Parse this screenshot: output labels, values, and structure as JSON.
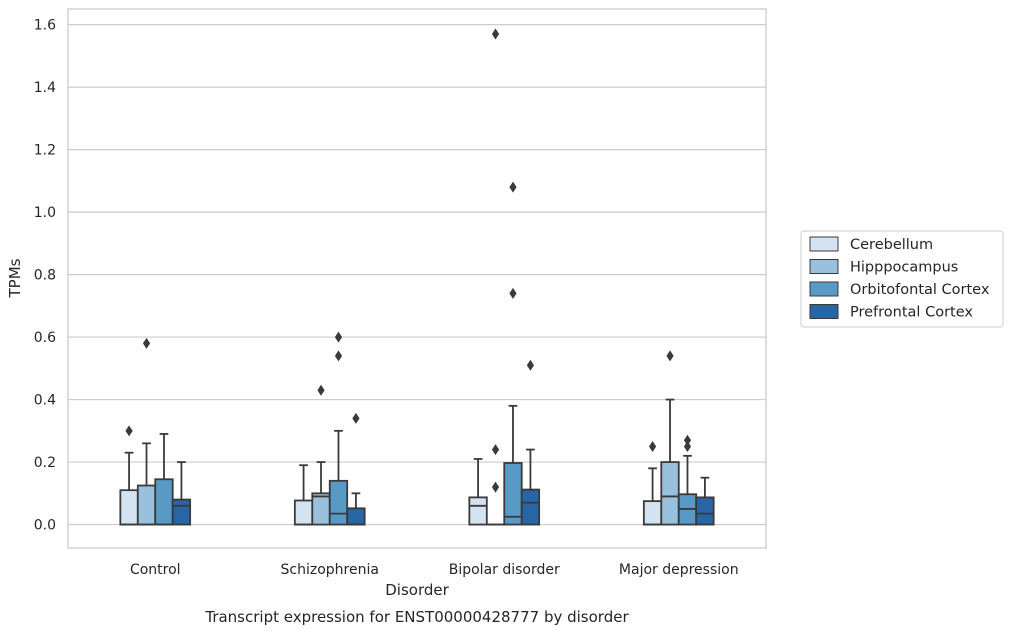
{
  "chart_data": {
    "type": "box",
    "xlabel": "Disorder",
    "ylabel": "TPMs",
    "caption": "Transcript expression for ENST00000428777 by disorder",
    "ylim": [
      -0.075,
      1.65
    ],
    "yticks": [
      0.0,
      0.2,
      0.4,
      0.6,
      0.8,
      1.0,
      1.2,
      1.4,
      1.6
    ],
    "ytick_labels": [
      "0.0",
      "0.2",
      "0.4",
      "0.6",
      "0.8",
      "1.0",
      "1.2",
      "1.4",
      "1.6"
    ],
    "grid": "horizontal",
    "legend_position": "right",
    "categories": [
      "Control",
      "Schizophrenia",
      "Bipolar disorder",
      "Major depression"
    ],
    "series": [
      {
        "name": "Cerebellum",
        "color": "#d4e3f1",
        "boxes": [
          {
            "min": 0.0,
            "q1": 0.0,
            "median": 0.0,
            "q3": 0.11,
            "max": 0.23,
            "outliers": [
              0.3
            ]
          },
          {
            "min": 0.0,
            "q1": 0.0,
            "median": 0.0,
            "q3": 0.077,
            "max": 0.19,
            "outliers": []
          },
          {
            "min": 0.0,
            "q1": 0.0,
            "median": 0.06,
            "q3": 0.087,
            "max": 0.21,
            "outliers": []
          },
          {
            "min": 0.0,
            "q1": 0.0,
            "median": 0.0,
            "q3": 0.075,
            "max": 0.18,
            "outliers": [
              0.25
            ]
          }
        ]
      },
      {
        "name": "Hipppocampus",
        "color": "#99c1dd",
        "boxes": [
          {
            "min": 0.0,
            "q1": 0.0,
            "median": 0.0,
            "q3": 0.125,
            "max": 0.26,
            "outliers": [
              0.58
            ]
          },
          {
            "min": 0.0,
            "q1": 0.0,
            "median": 0.09,
            "q3": 0.1,
            "max": 0.2,
            "outliers": [
              0.43
            ]
          },
          {
            "min": 0.0,
            "q1": 0.0,
            "median": 0.0,
            "q3": 0.0,
            "max": 0.0,
            "outliers": [
              0.12,
              0.24,
              1.57
            ]
          },
          {
            "min": 0.0,
            "q1": 0.0,
            "median": 0.09,
            "q3": 0.2,
            "max": 0.4,
            "outliers": [
              0.54
            ]
          }
        ]
      },
      {
        "name": "Orbitofontal Cortex",
        "color": "#5899c6",
        "boxes": [
          {
            "min": 0.0,
            "q1": 0.0,
            "median": 0.0,
            "q3": 0.145,
            "max": 0.29,
            "outliers": []
          },
          {
            "min": 0.0,
            "q1": 0.0,
            "median": 0.035,
            "q3": 0.14,
            "max": 0.3,
            "outliers": [
              0.54,
              0.6
            ]
          },
          {
            "min": 0.0,
            "q1": 0.0,
            "median": 0.025,
            "q3": 0.197,
            "max": 0.38,
            "outliers": [
              0.74,
              1.08
            ]
          },
          {
            "min": 0.0,
            "q1": 0.0,
            "median": 0.05,
            "q3": 0.097,
            "max": 0.22,
            "outliers": [
              0.25,
              0.27
            ]
          }
        ]
      },
      {
        "name": "Prefrontal Cortex",
        "color": "#2765a4",
        "boxes": [
          {
            "min": 0.0,
            "q1": 0.0,
            "median": 0.06,
            "q3": 0.08,
            "max": 0.2,
            "outliers": []
          },
          {
            "min": 0.0,
            "q1": 0.0,
            "median": 0.0,
            "q3": 0.052,
            "max": 0.1,
            "outliers": [
              0.34
            ]
          },
          {
            "min": 0.0,
            "q1": 0.0,
            "median": 0.07,
            "q3": 0.112,
            "max": 0.24,
            "outliers": [
              0.51
            ]
          },
          {
            "min": 0.0,
            "q1": 0.0,
            "median": 0.035,
            "q3": 0.087,
            "max": 0.15,
            "outliers": []
          }
        ]
      }
    ]
  }
}
